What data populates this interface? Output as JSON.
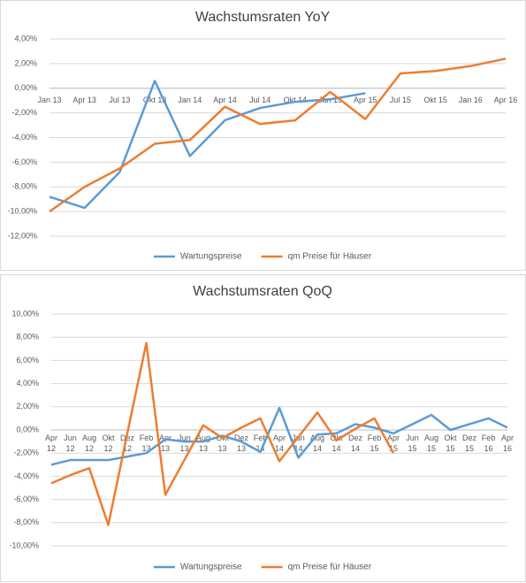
{
  "chart_data": [
    {
      "type": "line",
      "title": "Wachstumsraten YoY",
      "categories": [
        "Jan 13",
        "Apr 13",
        "Jul 13",
        "Okt 13",
        "Jan 14",
        "Apr 14",
        "Jul 14",
        "Okt 14",
        "Jan 15",
        "Apr 15",
        "Jul 15",
        "Okt 15",
        "Jan 16",
        "Apr 16"
      ],
      "series": [
        {
          "name": "Wartungspreise",
          "color": "#5b9bd5",
          "values": [
            -8.8,
            -9.7,
            -6.8,
            0.6,
            -5.5,
            -2.6,
            -1.6,
            -1.1,
            -0.9,
            -0.4,
            null,
            null,
            null,
            null
          ]
        },
        {
          "name": "qm Preise für Häuser",
          "color": "#ed7d31",
          "values": [
            -10.0,
            -8.0,
            -6.5,
            -4.5,
            -4.2,
            -1.5,
            -2.9,
            -2.6,
            -0.3,
            -2.5,
            1.2,
            1.4,
            1.8,
            2.4
          ]
        }
      ],
      "ylim": [
        -12,
        4
      ],
      "yticks": [
        {
          "value": -12,
          "label": "-12,00%"
        },
        {
          "value": -10,
          "label": "-10,00%"
        },
        {
          "value": -8,
          "label": "-8,00%"
        },
        {
          "value": -6,
          "label": "-6,00%"
        },
        {
          "value": -4,
          "label": "-4,00%"
        },
        {
          "value": -2,
          "label": "-2,00%"
        },
        {
          "value": 0,
          "label": "0,00%"
        },
        {
          "value": 2,
          "label": "2,00%"
        },
        {
          "value": 4,
          "label": "4,00%"
        }
      ],
      "grid": true,
      "legend": "bottom"
    },
    {
      "type": "line",
      "title": "Wachstumsraten QoQ",
      "categories": [
        "Apr 12",
        "Jun 12",
        "Aug 12",
        "Okt 12",
        "Dez 12",
        "Feb 13",
        "Apr 13",
        "Jun 13",
        "Aug 13",
        "Okt 13",
        "Dez 13",
        "Feb 14",
        "Apr 14",
        "Jun 14",
        "Aug 14",
        "Okt 14",
        "Dez 14",
        "Feb 15",
        "Apr 15",
        "Jun 15",
        "Aug 15",
        "Okt 15",
        "Dez 15",
        "Feb 16",
        "Apr 16"
      ],
      "series": [
        {
          "name": "Wartungspreise",
          "color": "#5b9bd5",
          "values": [
            -3.0,
            -2.6,
            -2.6,
            -2.6,
            -2.3,
            -2.0,
            -0.8,
            -1.0,
            -1.0,
            -0.5,
            -1.0,
            -1.9,
            1.9,
            -2.4,
            -0.4,
            -0.3,
            0.5,
            0.2,
            -0.3,
            0.5,
            1.3,
            0.0,
            0.5,
            1.0,
            0.2
          ]
        },
        {
          "name": "qm Preise für Häuser",
          "color": "#ed7d31",
          "values": [
            -4.6,
            -3.9,
            -3.3,
            -8.2,
            -0.3,
            7.5,
            -5.6,
            -2.6,
            0.4,
            -0.7,
            0.2,
            1.0,
            -2.7,
            -0.6,
            1.5,
            -0.9,
            0.1,
            1.0,
            -2.0,
            null,
            null,
            null,
            null,
            null,
            null
          ]
        }
      ],
      "ylim": [
        -10,
        10
      ],
      "yticks": [
        {
          "value": -10,
          "label": "-10,00%"
        },
        {
          "value": -8,
          "label": "-8,00%"
        },
        {
          "value": -6,
          "label": "-6,00%"
        },
        {
          "value": -4,
          "label": "-4,00%"
        },
        {
          "value": -2,
          "label": "-2,00%"
        },
        {
          "value": 0,
          "label": "0,00%"
        },
        {
          "value": 2,
          "label": "2,00%"
        },
        {
          "value": 4,
          "label": "4,00%"
        },
        {
          "value": 6,
          "label": "6,00%"
        },
        {
          "value": 8,
          "label": "8,00%"
        },
        {
          "value": 10,
          "label": "10,00%"
        }
      ],
      "grid": true,
      "legend": "bottom"
    }
  ]
}
